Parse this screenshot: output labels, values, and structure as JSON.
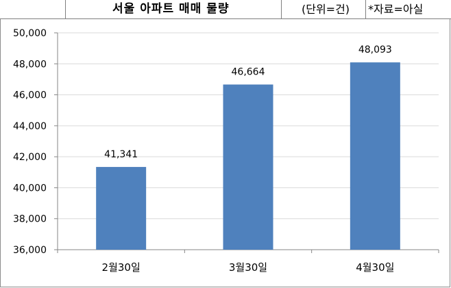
{
  "header": {
    "title": "서울 아파트 매매 물량",
    "unit": "(단위=건)",
    "source": "*자료=아실"
  },
  "colors": {
    "bar": "#4f81bd",
    "grid": "#d9d9d9",
    "axis": "#868686"
  },
  "chart_data": {
    "type": "bar",
    "title": "서울 아파트 매매 물량",
    "categories": [
      "2월30일",
      "3월30일",
      "4월30일"
    ],
    "values": [
      41341,
      46664,
      48093
    ],
    "value_labels": [
      "41,341",
      "46,664",
      "48,093"
    ],
    "xlabel": "",
    "ylabel": "",
    "ylim": [
      36000,
      50000
    ],
    "yticks": [
      36000,
      38000,
      40000,
      42000,
      44000,
      46000,
      48000,
      50000
    ],
    "ytick_labels": [
      "36,000",
      "38,000",
      "40,000",
      "42,000",
      "44,000",
      "46,000",
      "48,000",
      "50,000"
    ],
    "grid": true,
    "legend": "none"
  }
}
